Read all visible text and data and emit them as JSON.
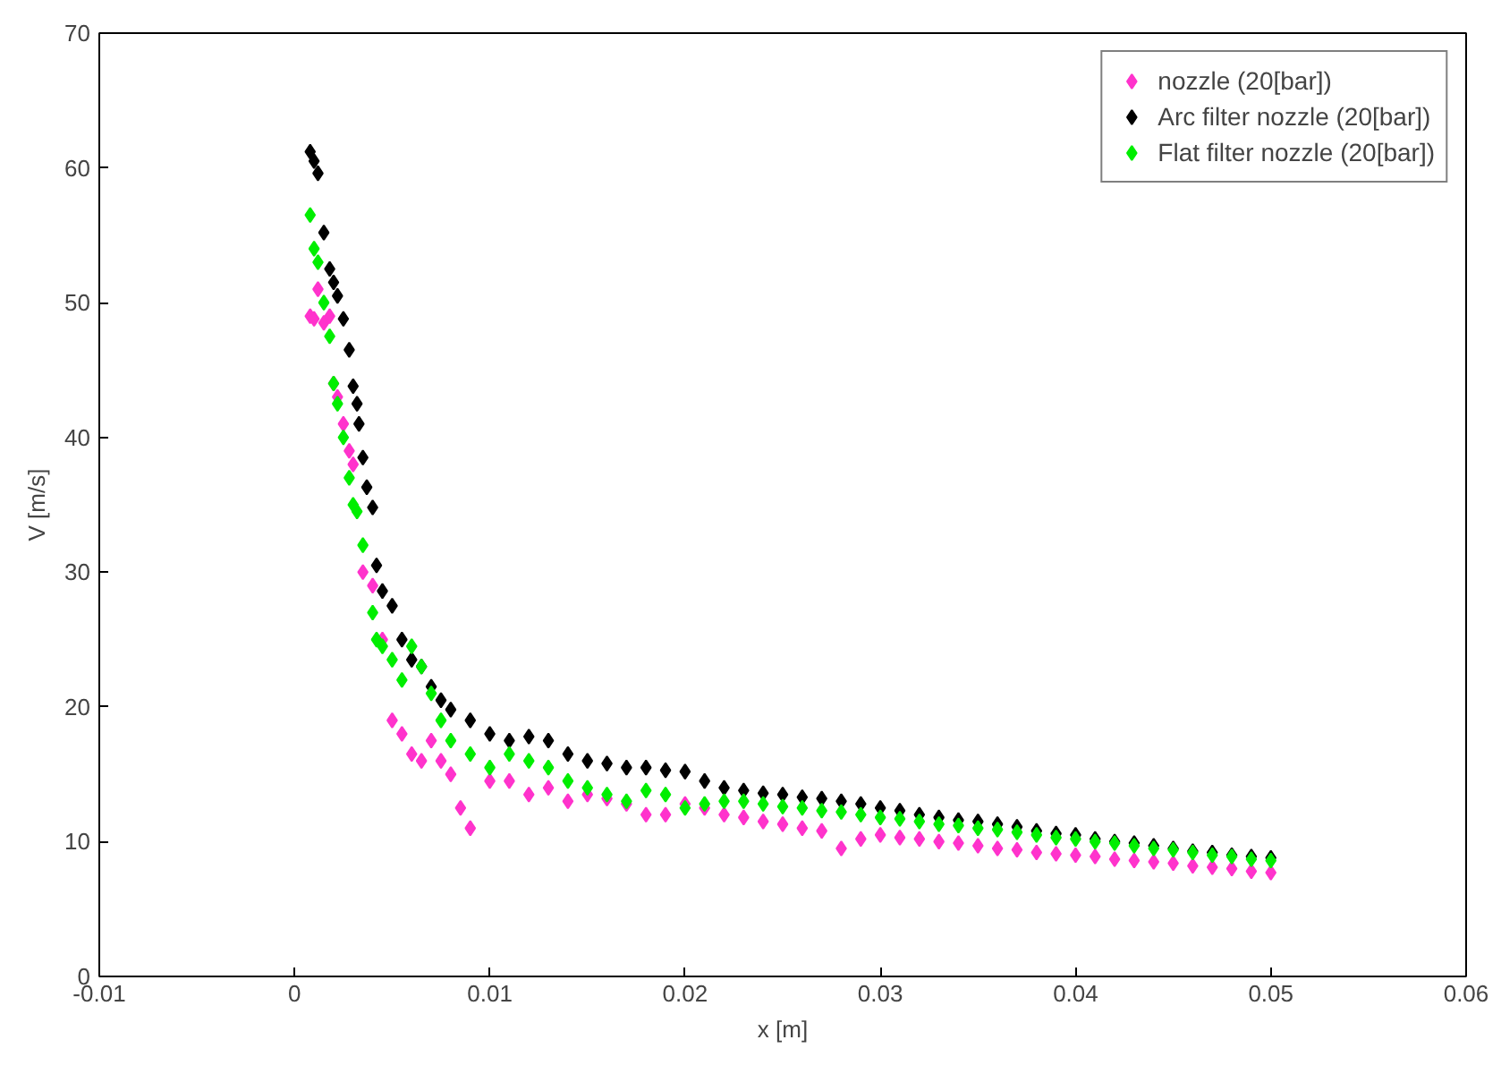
{
  "chart_data": {
    "type": "scatter",
    "xlabel": "x [m]",
    "ylabel": "V [m/s]",
    "xlim": [
      -0.01,
      0.06
    ],
    "ylim": [
      0,
      70
    ],
    "xticks": [
      -0.01,
      0,
      0.01,
      0.02,
      0.03,
      0.04,
      0.05,
      0.06
    ],
    "yticks": [
      0,
      10,
      20,
      30,
      40,
      50,
      60,
      70
    ],
    "grid": false,
    "legend": "top right",
    "marker": "diamond",
    "series": [
      {
        "name": "nozzle (20[bar])",
        "color": "#ff33cc",
        "x": [
          0.0008,
          0.001,
          0.0012,
          0.0015,
          0.0018,
          0.002,
          0.0022,
          0.0025,
          0.0028,
          0.003,
          0.0035,
          0.004,
          0.0045,
          0.005,
          0.0055,
          0.006,
          0.0065,
          0.007,
          0.0075,
          0.008,
          0.0085,
          0.009,
          0.01,
          0.011,
          0.012,
          0.013,
          0.014,
          0.015,
          0.016,
          0.017,
          0.018,
          0.019,
          0.02,
          0.021,
          0.022,
          0.023,
          0.024,
          0.025,
          0.026,
          0.027,
          0.028,
          0.029,
          0.03,
          0.031,
          0.032,
          0.033,
          0.034,
          0.035,
          0.036,
          0.037,
          0.038,
          0.039,
          0.04,
          0.041,
          0.042,
          0.043,
          0.044,
          0.045,
          0.046,
          0.047,
          0.048,
          0.049,
          0.05
        ],
        "values": [
          49,
          48.8,
          51,
          48.5,
          49,
          44,
          43,
          41,
          39,
          38,
          30,
          29,
          25,
          19,
          18,
          16.5,
          16,
          17.5,
          16,
          15,
          12.5,
          11,
          14.5,
          14.5,
          13.5,
          14,
          13,
          13.5,
          13.2,
          12.8,
          12,
          12,
          12.8,
          12.5,
          12,
          11.8,
          11.5,
          11.3,
          11,
          10.8,
          9.5,
          10.2,
          10.5,
          10.3,
          10.2,
          10,
          9.9,
          9.7,
          9.5,
          9.4,
          9.2,
          9.1,
          9,
          8.9,
          8.7,
          8.6,
          8.5,
          8.4,
          8.2,
          8.1,
          8,
          7.8,
          7.7
        ]
      },
      {
        "name": "Arc filter nozzle (20[bar])",
        "color": "#000000",
        "x": [
          0.0008,
          0.001,
          0.0012,
          0.0015,
          0.0018,
          0.002,
          0.0022,
          0.0025,
          0.0028,
          0.003,
          0.0032,
          0.0033,
          0.0035,
          0.0037,
          0.004,
          0.0042,
          0.0045,
          0.005,
          0.0055,
          0.006,
          0.0065,
          0.007,
          0.0075,
          0.008,
          0.009,
          0.01,
          0.011,
          0.012,
          0.013,
          0.014,
          0.015,
          0.016,
          0.017,
          0.018,
          0.019,
          0.02,
          0.021,
          0.022,
          0.023,
          0.024,
          0.025,
          0.026,
          0.027,
          0.028,
          0.029,
          0.03,
          0.031,
          0.032,
          0.033,
          0.034,
          0.035,
          0.036,
          0.037,
          0.038,
          0.039,
          0.04,
          0.041,
          0.042,
          0.043,
          0.044,
          0.045,
          0.046,
          0.047,
          0.048,
          0.049,
          0.05
        ],
        "values": [
          61.2,
          60.5,
          59.6,
          55.2,
          52.5,
          51.5,
          50.5,
          48.8,
          46.5,
          43.8,
          42.5,
          41,
          38.5,
          36.3,
          34.8,
          30.5,
          28.6,
          27.5,
          25,
          23.5,
          23,
          21.5,
          20.5,
          19.8,
          19,
          18,
          17.5,
          17.8,
          17.5,
          16.5,
          16,
          15.8,
          15.5,
          15.5,
          15.3,
          15.2,
          14.5,
          14,
          13.8,
          13.6,
          13.5,
          13.3,
          13.2,
          13,
          12.8,
          12.5,
          12.3,
          12,
          11.8,
          11.6,
          11.5,
          11.3,
          11.1,
          10.8,
          10.6,
          10.5,
          10.2,
          10,
          9.9,
          9.7,
          9.5,
          9.3,
          9.2,
          9,
          8.9,
          8.8
        ]
      },
      {
        "name": "Flat filter nozzle (20[bar])",
        "color": "#00ee00",
        "x": [
          0.0008,
          0.001,
          0.0012,
          0.0015,
          0.0018,
          0.002,
          0.0022,
          0.0025,
          0.0028,
          0.003,
          0.0032,
          0.0035,
          0.004,
          0.0042,
          0.0045,
          0.005,
          0.0055,
          0.006,
          0.0065,
          0.007,
          0.0075,
          0.008,
          0.009,
          0.01,
          0.011,
          0.012,
          0.013,
          0.014,
          0.015,
          0.016,
          0.017,
          0.018,
          0.019,
          0.02,
          0.021,
          0.022,
          0.023,
          0.024,
          0.025,
          0.026,
          0.027,
          0.028,
          0.029,
          0.03,
          0.031,
          0.032,
          0.033,
          0.034,
          0.035,
          0.036,
          0.037,
          0.038,
          0.039,
          0.04,
          0.041,
          0.042,
          0.043,
          0.044,
          0.045,
          0.046,
          0.047,
          0.048,
          0.049,
          0.05
        ],
        "values": [
          56.5,
          54,
          53,
          50,
          47.5,
          44,
          42.5,
          40,
          37,
          35,
          34.5,
          32,
          27,
          25,
          24.5,
          23.5,
          22,
          24.5,
          23,
          21,
          19,
          17.5,
          16.5,
          15.5,
          16.5,
          16,
          15.5,
          14.5,
          14,
          13.5,
          13,
          13.8,
          13.5,
          12.5,
          12.8,
          13,
          13,
          12.8,
          12.6,
          12.5,
          12.3,
          12.2,
          12,
          11.8,
          11.7,
          11.5,
          11.3,
          11.2,
          11,
          10.9,
          10.7,
          10.5,
          10.3,
          10.2,
          10,
          9.9,
          9.7,
          9.5,
          9.4,
          9.2,
          9,
          8.9,
          8.7,
          8.6
        ]
      }
    ]
  }
}
